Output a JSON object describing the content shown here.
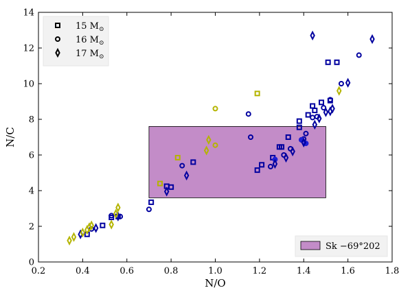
{
  "chart_data": {
    "type": "scatter",
    "xlabel": "N/O",
    "ylabel": "N/C",
    "xlim": [
      0.2,
      1.8
    ],
    "ylim": [
      0,
      14
    ],
    "x_ticks": [
      "0.2",
      "0.4",
      "0.6",
      "0.8",
      "1.0",
      "1.2",
      "1.4",
      "1.6",
      "1.8"
    ],
    "y_ticks": [
      "0",
      "2",
      "4",
      "6",
      "8",
      "10",
      "12",
      "14"
    ],
    "grid": false,
    "legend_placement": "top-left",
    "legend": [
      {
        "label": "15 M",
        "subscript": "⊙",
        "marker": "square"
      },
      {
        "label": "16 M",
        "subscript": "⊙",
        "marker": "circle"
      },
      {
        "label": "17 M",
        "subscript": "⊙",
        "marker": "diamond"
      }
    ],
    "region": {
      "label": "Sk −69°202",
      "x": [
        0.7,
        1.5
      ],
      "y": [
        3.6,
        7.6
      ],
      "color": "#c38cc8"
    },
    "colors": {
      "blue": "#00009f",
      "filled_blue": "#1f1fd6",
      "yellow": "#b4b400"
    },
    "series": [
      {
        "name": "15 M",
        "marker": "square",
        "color_class": "blue",
        "points": [
          [
            0.42,
            1.55
          ],
          [
            0.49,
            2.05
          ],
          [
            0.53,
            2.5
          ],
          [
            0.56,
            2.55
          ],
          [
            0.71,
            3.35
          ],
          [
            0.78,
            4.25
          ],
          [
            0.8,
            4.2
          ],
          [
            0.9,
            5.6
          ],
          [
            1.19,
            5.15
          ],
          [
            1.21,
            5.45
          ],
          [
            1.26,
            5.85
          ],
          [
            1.29,
            6.45
          ],
          [
            1.3,
            6.45
          ],
          [
            1.33,
            7.0
          ],
          [
            1.38,
            7.55
          ],
          [
            1.38,
            7.9
          ],
          [
            1.42,
            8.25
          ],
          [
            1.45,
            8.5
          ],
          [
            1.44,
            8.75
          ],
          [
            1.48,
            8.95
          ],
          [
            1.52,
            9.05
          ],
          [
            1.55,
            11.2
          ],
          [
            1.51,
            11.2
          ]
        ]
      },
      {
        "name": "15 M",
        "marker": "square",
        "color_class": "yellow",
        "points": [
          [
            0.75,
            4.4
          ],
          [
            0.83,
            5.85
          ],
          [
            1.19,
            9.45
          ]
        ]
      },
      {
        "name": "16 M",
        "marker": "circle",
        "color_class": "blue",
        "points": [
          [
            0.44,
            1.85
          ],
          [
            0.53,
            2.6
          ],
          [
            0.57,
            2.55
          ],
          [
            0.7,
            2.95
          ],
          [
            0.85,
            5.4
          ],
          [
            1.15,
            8.3
          ],
          [
            1.16,
            7.0
          ],
          [
            1.25,
            5.35
          ],
          [
            1.31,
            6.0
          ],
          [
            1.34,
            6.35
          ],
          [
            1.39,
            6.85
          ],
          [
            1.4,
            6.9
          ],
          [
            1.41,
            7.2
          ],
          [
            1.44,
            8.1
          ],
          [
            1.46,
            8.15
          ],
          [
            1.49,
            8.65
          ],
          [
            1.52,
            9.1
          ],
          [
            1.57,
            10.0
          ],
          [
            1.65,
            11.6
          ]
        ]
      },
      {
        "name": "16 M",
        "marker": "circle",
        "color_class": "filled_blue",
        "filled": true,
        "points": [
          [
            1.27,
            5.75
          ],
          [
            1.39,
            6.85
          ],
          [
            1.41,
            6.65
          ]
        ]
      },
      {
        "name": "16 M",
        "marker": "circle",
        "color_class": "yellow",
        "points": [
          [
            1.0,
            8.6
          ],
          [
            1.0,
            6.55
          ]
        ]
      },
      {
        "name": "17 M",
        "marker": "diamond",
        "color_class": "blue",
        "points": [
          [
            0.39,
            1.55
          ],
          [
            0.46,
            1.9
          ],
          [
            0.56,
            2.55
          ],
          [
            0.78,
            3.95
          ],
          [
            0.87,
            4.85
          ],
          [
            1.27,
            5.5
          ],
          [
            1.32,
            5.85
          ],
          [
            1.35,
            6.2
          ],
          [
            1.4,
            6.7
          ],
          [
            1.45,
            7.7
          ],
          [
            1.47,
            8.05
          ],
          [
            1.5,
            8.4
          ],
          [
            1.52,
            8.45
          ],
          [
            1.53,
            8.6
          ],
          [
            1.6,
            10.05
          ],
          [
            1.44,
            12.7
          ],
          [
            1.71,
            12.5
          ]
        ]
      },
      {
        "name": "17 M",
        "marker": "diamond",
        "color_class": "yellow",
        "points": [
          [
            0.34,
            1.2
          ],
          [
            0.36,
            1.4
          ],
          [
            0.4,
            1.65
          ],
          [
            0.42,
            1.8
          ],
          [
            0.43,
            1.95
          ],
          [
            0.44,
            2.05
          ],
          [
            0.53,
            2.1
          ],
          [
            0.55,
            2.7
          ],
          [
            0.56,
            3.05
          ],
          [
            0.96,
            6.25
          ],
          [
            0.97,
            6.85
          ],
          [
            1.56,
            9.6
          ]
        ]
      }
    ]
  }
}
